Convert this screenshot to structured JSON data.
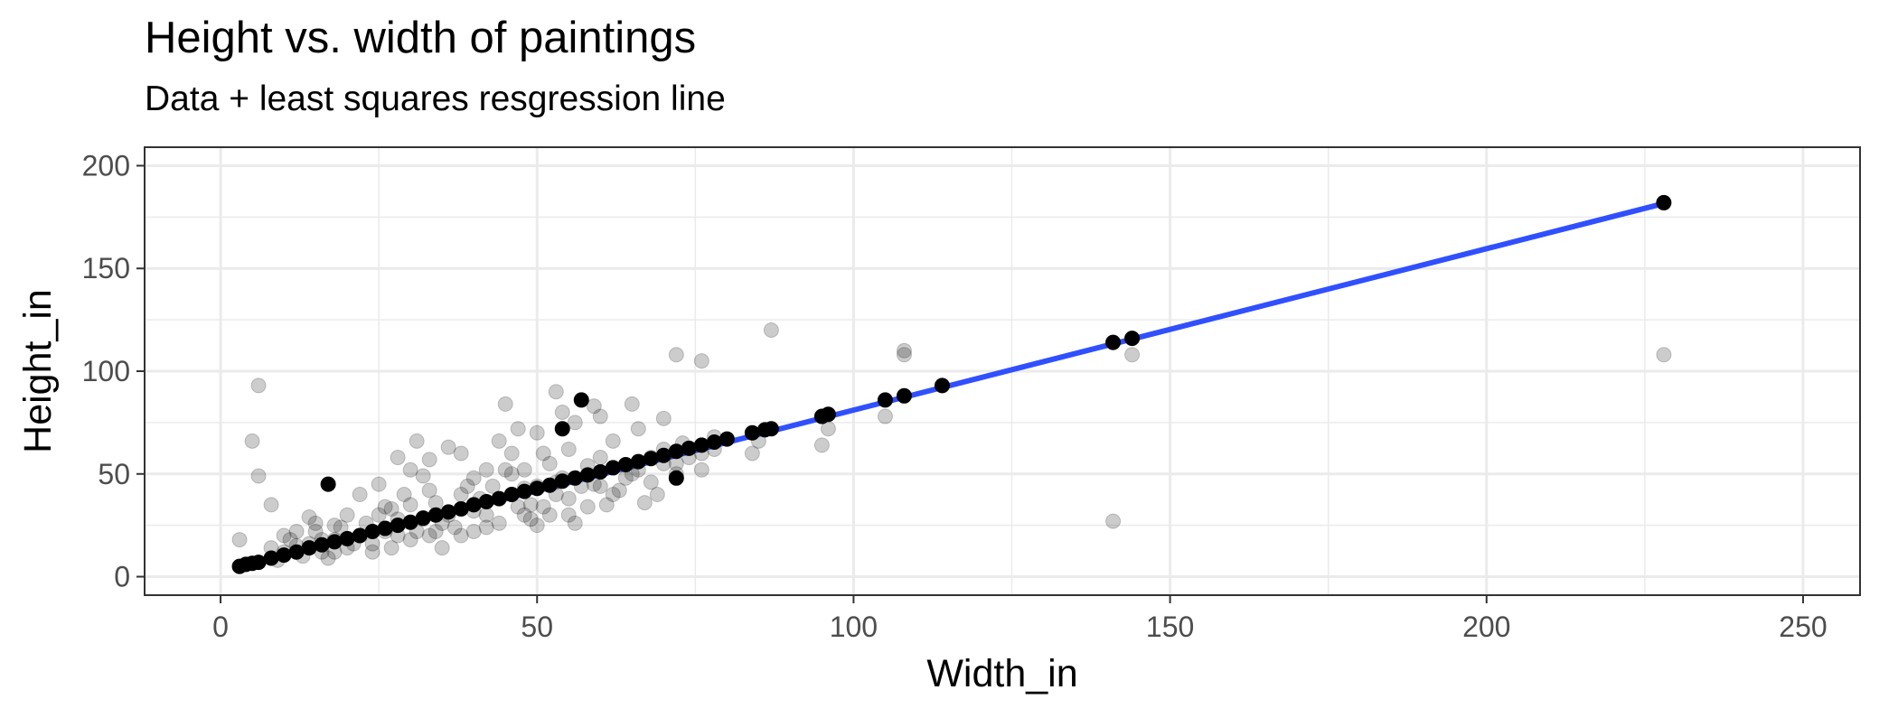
{
  "chart_data": {
    "type": "scatter",
    "title": "Height vs. width of paintings",
    "subtitle": "Data + least squares resgression line",
    "xlabel": "Width_in",
    "ylabel": "Height_in",
    "xlim": [
      -12,
      259
    ],
    "ylim": [
      -9,
      209
    ],
    "x_ticks": [
      0,
      50,
      100,
      150,
      200,
      250
    ],
    "y_ticks": [
      0,
      50,
      100,
      150,
      200
    ],
    "grid": true,
    "legend": "none",
    "colors": {
      "points": "#000000",
      "line": "#3050ff",
      "grid": "#ebebeb",
      "border": "#333333"
    },
    "regression_line": {
      "x": [
        3,
        228
      ],
      "y": [
        4.9,
        181.6
      ]
    },
    "series": [
      {
        "name": "observed",
        "opacity": 0.2,
        "points": [
          [
            3,
            18
          ],
          [
            5,
            66
          ],
          [
            6,
            93
          ],
          [
            6,
            49
          ],
          [
            8,
            35
          ],
          [
            14,
            29
          ],
          [
            18,
            25
          ],
          [
            22,
            40
          ],
          [
            25,
            45
          ],
          [
            27,
            33
          ],
          [
            28,
            58
          ],
          [
            30,
            52
          ],
          [
            30,
            35
          ],
          [
            31,
            66
          ],
          [
            32,
            49
          ],
          [
            33,
            57
          ],
          [
            34,
            22
          ],
          [
            36,
            63
          ],
          [
            38,
            60
          ],
          [
            38,
            40
          ],
          [
            40,
            48
          ],
          [
            40,
            32
          ],
          [
            42,
            52
          ],
          [
            42,
            30
          ],
          [
            44,
            66
          ],
          [
            45,
            84
          ],
          [
            45,
            52
          ],
          [
            46,
            60
          ],
          [
            46,
            40
          ],
          [
            47,
            72
          ],
          [
            48,
            43
          ],
          [
            48,
            30
          ],
          [
            49,
            35
          ],
          [
            50,
            70
          ],
          [
            50,
            25
          ],
          [
            51,
            60
          ],
          [
            52,
            55
          ],
          [
            53,
            90
          ],
          [
            53,
            46
          ],
          [
            54,
            80
          ],
          [
            55,
            62
          ],
          [
            55,
            38
          ],
          [
            56,
            75
          ],
          [
            56,
            26
          ],
          [
            57,
            86
          ],
          [
            58,
            54
          ],
          [
            59,
            83
          ],
          [
            59,
            45
          ],
          [
            60,
            78
          ],
          [
            60,
            58
          ],
          [
            61,
            35
          ],
          [
            62,
            66
          ],
          [
            63,
            42
          ],
          [
            65,
            84
          ],
          [
            65,
            50
          ],
          [
            66,
            72
          ],
          [
            67,
            36
          ],
          [
            68,
            58
          ],
          [
            69,
            40
          ],
          [
            70,
            77
          ],
          [
            70,
            55
          ],
          [
            72,
            108
          ],
          [
            72,
            55
          ],
          [
            73,
            65
          ],
          [
            76,
            105
          ],
          [
            76,
            60
          ],
          [
            78,
            68
          ],
          [
            84,
            60
          ],
          [
            85,
            66
          ],
          [
            87,
            120
          ],
          [
            95,
            64
          ],
          [
            96,
            72
          ],
          [
            105,
            78
          ],
          [
            108,
            110
          ],
          [
            108,
            108
          ],
          [
            141,
            27
          ],
          [
            144,
            108
          ],
          [
            228,
            108
          ],
          [
            10,
            20
          ],
          [
            12,
            15
          ],
          [
            15,
            22
          ],
          [
            16,
            12
          ],
          [
            18,
            18
          ],
          [
            20,
            14
          ],
          [
            20,
            30
          ],
          [
            22,
            20
          ],
          [
            24,
            16
          ],
          [
            25,
            30
          ],
          [
            26,
            22
          ],
          [
            27,
            14
          ],
          [
            28,
            28
          ],
          [
            29,
            40
          ],
          [
            30,
            18
          ],
          [
            32,
            28
          ],
          [
            33,
            20
          ],
          [
            34,
            36
          ],
          [
            35,
            14
          ],
          [
            36,
            30
          ],
          [
            37,
            24
          ],
          [
            38,
            20
          ],
          [
            39,
            44
          ],
          [
            40,
            22
          ],
          [
            41,
            38
          ],
          [
            42,
            24
          ],
          [
            43,
            44
          ],
          [
            44,
            26
          ],
          [
            46,
            50
          ],
          [
            47,
            34
          ],
          [
            48,
            52
          ],
          [
            49,
            28
          ],
          [
            50,
            44
          ],
          [
            51,
            34
          ],
          [
            52,
            30
          ],
          [
            53,
            40
          ],
          [
            54,
            48
          ],
          [
            55,
            30
          ],
          [
            57,
            44
          ],
          [
            58,
            34
          ],
          [
            60,
            44
          ],
          [
            62,
            40
          ],
          [
            64,
            48
          ],
          [
            66,
            52
          ],
          [
            68,
            46
          ],
          [
            70,
            62
          ],
          [
            72,
            50
          ],
          [
            74,
            58
          ],
          [
            76,
            52
          ],
          [
            78,
            62
          ],
          [
            8,
            14
          ],
          [
            9,
            8
          ],
          [
            10,
            12
          ],
          [
            11,
            18
          ],
          [
            12,
            22
          ],
          [
            13,
            10
          ],
          [
            14,
            16
          ],
          [
            15,
            26
          ],
          [
            16,
            18
          ],
          [
            17,
            9
          ],
          [
            18,
            12
          ],
          [
            19,
            24
          ],
          [
            21,
            16
          ],
          [
            23,
            26
          ],
          [
            24,
            12
          ],
          [
            26,
            34
          ],
          [
            28,
            20
          ],
          [
            31,
            22
          ],
          [
            33,
            42
          ],
          [
            35,
            26
          ]
        ]
      },
      {
        "name": "fitted",
        "opacity": 1,
        "points": [
          [
            3,
            5
          ],
          [
            4,
            6
          ],
          [
            5,
            6.5
          ],
          [
            6,
            7
          ],
          [
            8,
            9
          ],
          [
            10,
            10.5
          ],
          [
            12,
            12
          ],
          [
            14,
            14
          ],
          [
            16,
            15.5
          ],
          [
            17,
            45
          ],
          [
            18,
            17
          ],
          [
            20,
            18.5
          ],
          [
            22,
            20
          ],
          [
            24,
            22
          ],
          [
            26,
            23.5
          ],
          [
            28,
            25
          ],
          [
            30,
            26.5
          ],
          [
            32,
            28.5
          ],
          [
            34,
            30
          ],
          [
            36,
            31.5
          ],
          [
            38,
            33
          ],
          [
            40,
            35
          ],
          [
            42,
            36.5
          ],
          [
            44,
            38
          ],
          [
            46,
            40
          ],
          [
            48,
            41.5
          ],
          [
            50,
            43
          ],
          [
            52,
            44.5
          ],
          [
            54,
            46.5
          ],
          [
            54,
            72
          ],
          [
            56,
            48
          ],
          [
            57,
            86
          ],
          [
            58,
            49.5
          ],
          [
            60,
            51
          ],
          [
            62,
            53
          ],
          [
            64,
            54.5
          ],
          [
            66,
            56
          ],
          [
            68,
            57.5
          ],
          [
            70,
            59
          ],
          [
            72,
            61
          ],
          [
            72,
            48
          ],
          [
            74,
            62.5
          ],
          [
            76,
            64
          ],
          [
            78,
            65.5
          ],
          [
            80,
            67
          ],
          [
            84,
            70
          ],
          [
            86,
            71.5
          ],
          [
            87,
            72
          ],
          [
            95,
            78
          ],
          [
            96,
            79
          ],
          [
            105,
            86
          ],
          [
            108,
            88
          ],
          [
            114,
            93
          ],
          [
            141,
            114
          ],
          [
            144,
            116
          ],
          [
            228,
            182
          ]
        ]
      }
    ]
  }
}
